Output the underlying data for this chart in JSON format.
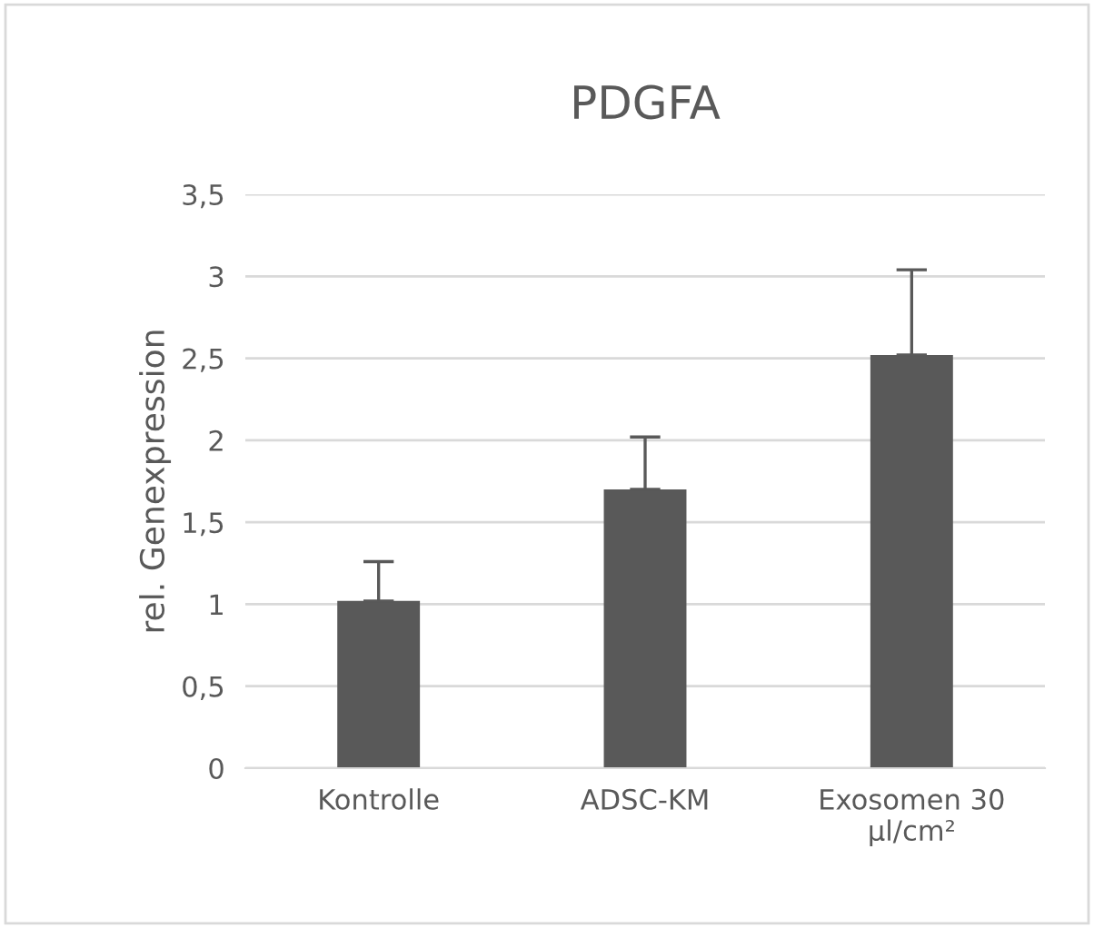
{
  "chart_data": {
    "type": "bar",
    "title": "PDGFA",
    "ylabel": "rel. Genexpression",
    "categories": [
      "Kontrolle",
      "ADSC-KM",
      "Exosomen 30\nµl/cm²"
    ],
    "values": [
      1.02,
      1.7,
      2.52
    ],
    "errors": [
      [
        1.02,
        1.26
      ],
      [
        1.7,
        2.02
      ],
      [
        2.52,
        3.04
      ]
    ],
    "color": "#595959",
    "ylim": [
      0,
      3.5
    ],
    "yticks": [
      0,
      {
        "value": 0.5,
        "label": "0,5"
      },
      1,
      {
        "value": 1.5,
        "label": "1,5"
      },
      2,
      {
        "value": 2.5,
        "label": "2,5"
      },
      3,
      {
        "value": 3.5,
        "label": "3,5"
      }
    ],
    "grid": "y"
  }
}
